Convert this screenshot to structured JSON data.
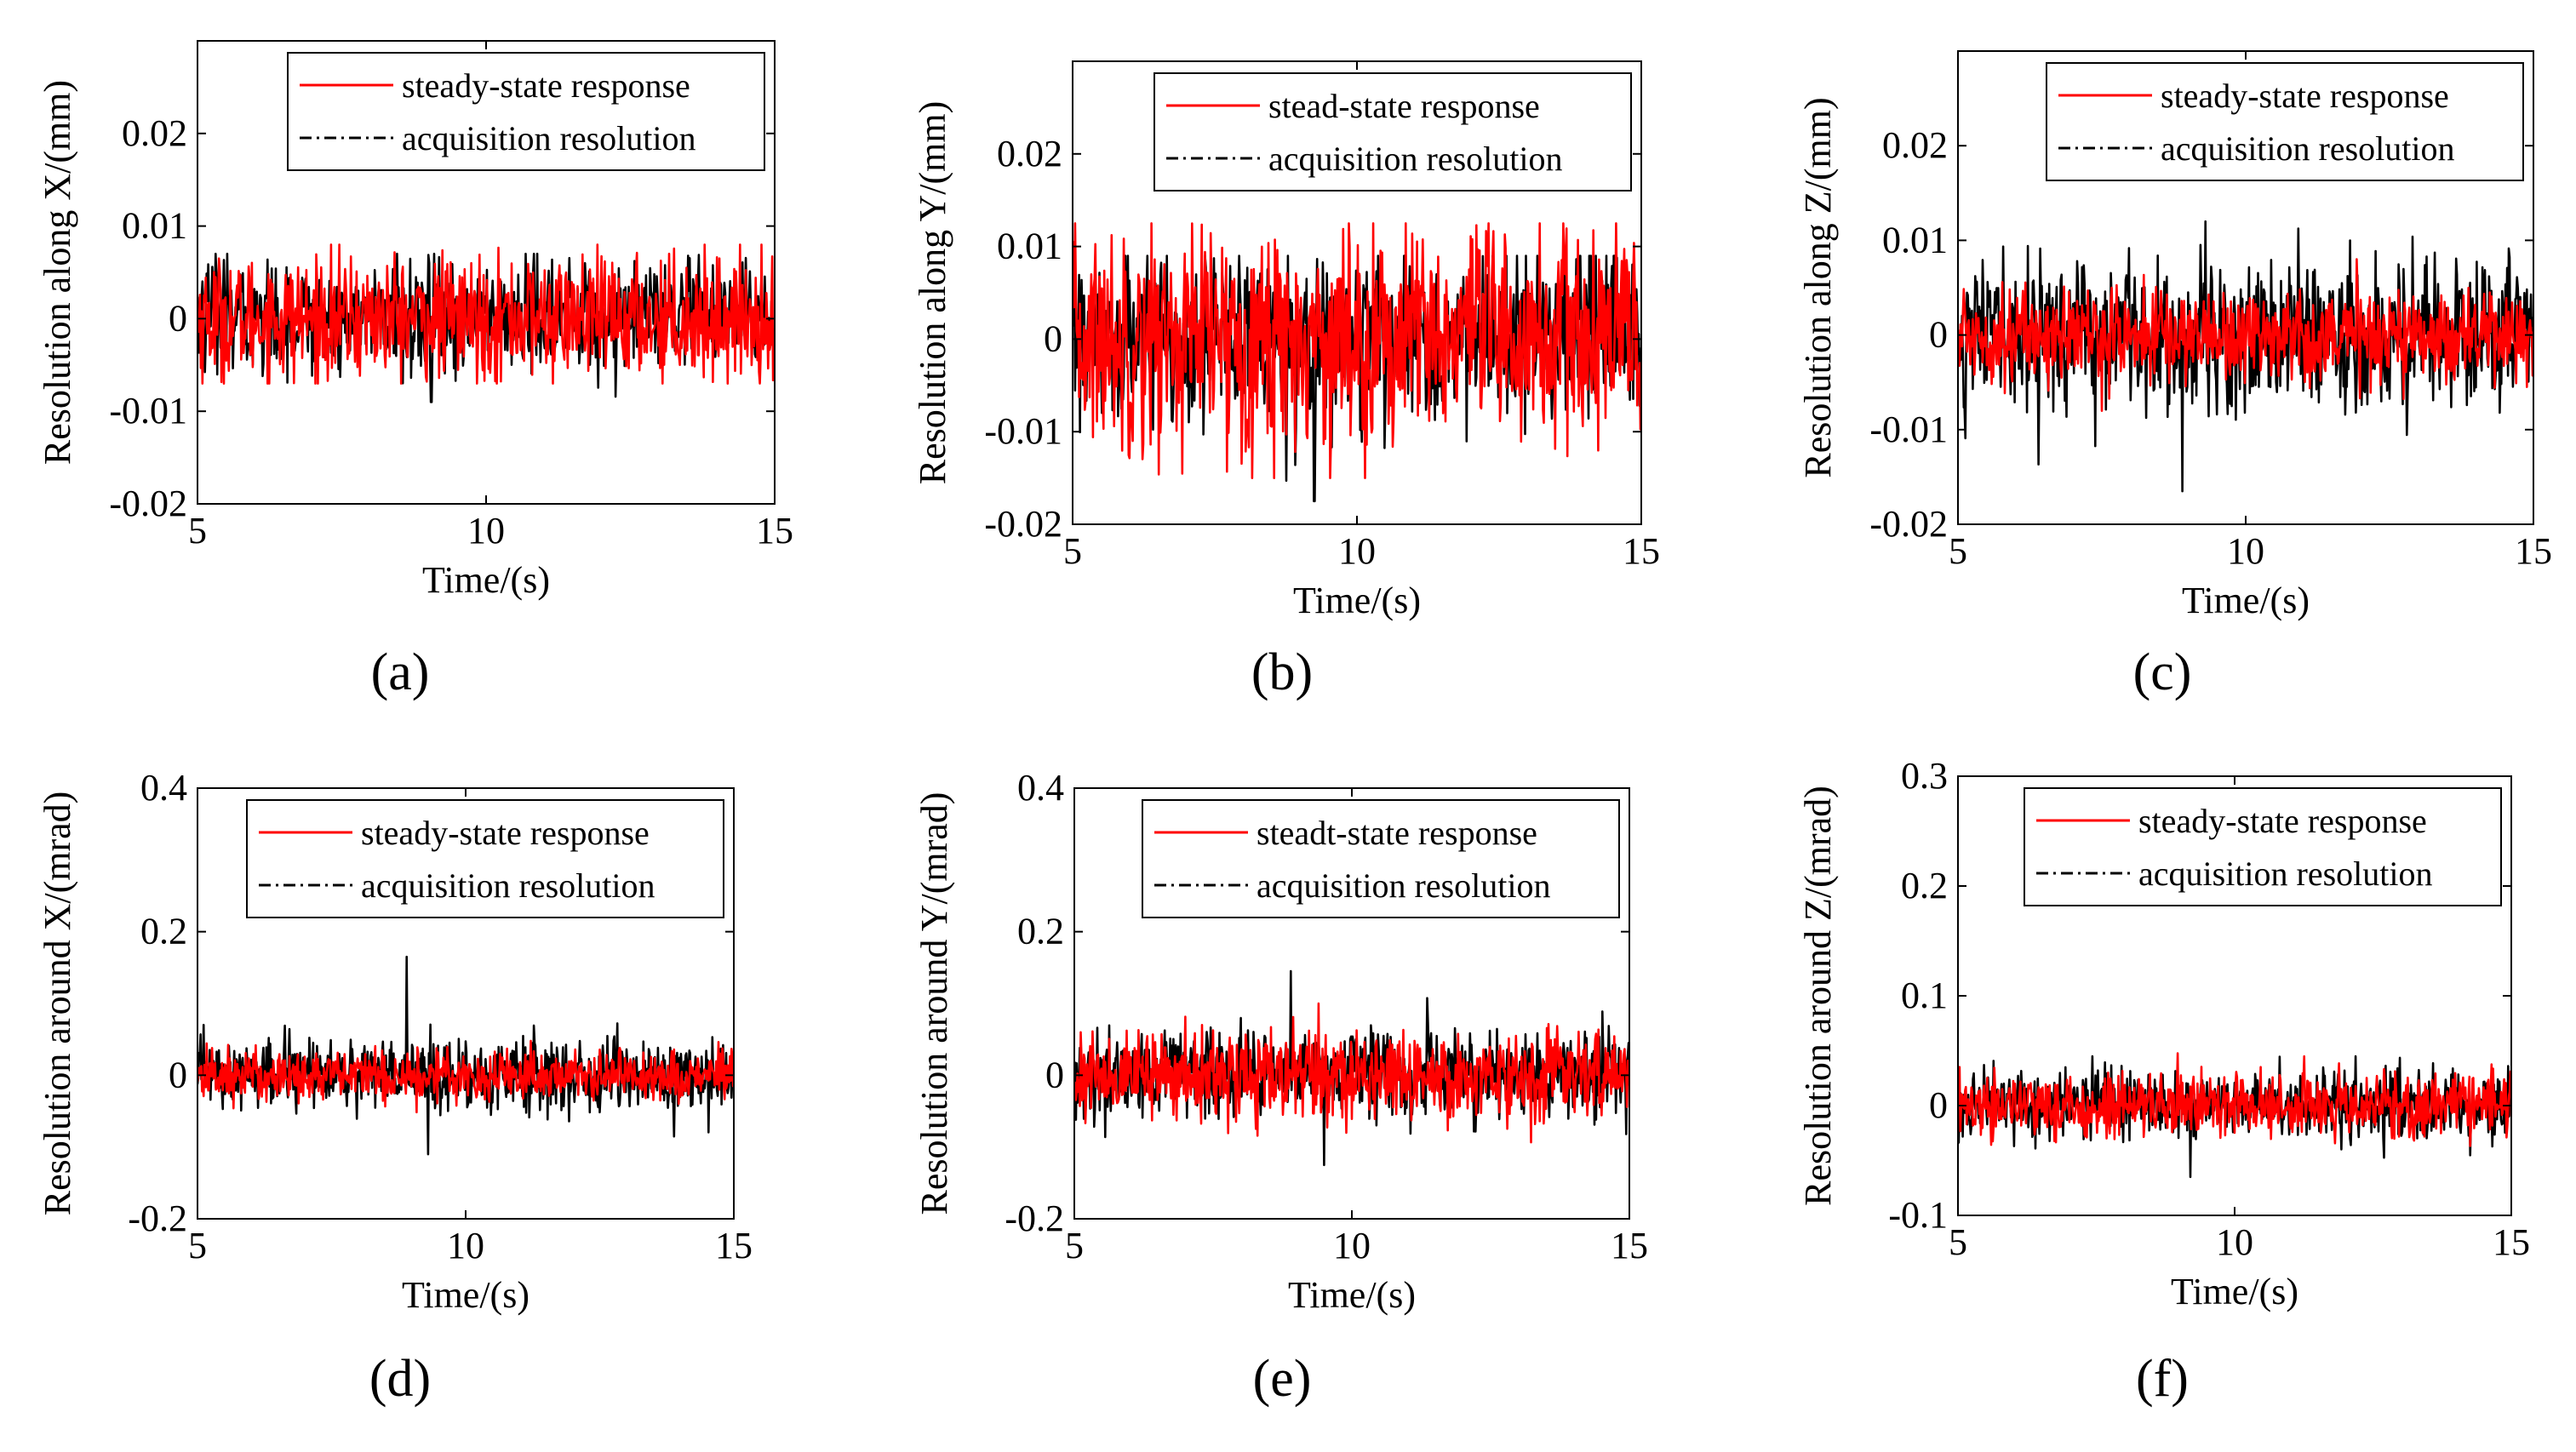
{
  "chart_data": [
    {
      "panel": "(a)",
      "type": "line",
      "ylabel": "Resolution along X/(mm)",
      "xlabel": "Time/(s)",
      "xlim": [
        5,
        15
      ],
      "ylim": [
        -0.02,
        0.03
      ],
      "xticks": [
        5,
        10,
        15
      ],
      "yticks": [
        -0.02,
        -0.01,
        0,
        0.01,
        0.02
      ],
      "ytick_labels": [
        "-0.02",
        "-0.01",
        "0",
        "0.01",
        "0.02"
      ],
      "legend_position": "top-right",
      "series": [
        {
          "name": "steady-state response",
          "style": "solid",
          "color": "#ff0000",
          "amplitude": 0.0033,
          "max": 0.008,
          "min": -0.007,
          "events": []
        },
        {
          "name": "acquisition resolution",
          "style": "dash-dot",
          "color": "#000000",
          "amplitude": 0.003,
          "max": 0.007,
          "min": -0.009,
          "events": [
            {
              "t": 9.05,
              "v": -0.009
            }
          ]
        }
      ]
    },
    {
      "panel": "(b)",
      "type": "line",
      "ylabel": "Resolution along Y/(mm)",
      "xlabel": "Time/(s)",
      "xlim": [
        5,
        15
      ],
      "ylim": [
        -0.02,
        0.03
      ],
      "xticks": [
        5,
        10,
        15
      ],
      "yticks": [
        -0.02,
        -0.01,
        0,
        0.01,
        0.02
      ],
      "ytick_labels": [
        "-0.02",
        "-0.01",
        "0",
        "0.01",
        "0.02"
      ],
      "legend_position": "top-right",
      "series": [
        {
          "name": "stead-state response",
          "style": "solid",
          "color": "#ff0000",
          "amplitude": 0.006,
          "max": 0.0125,
          "min": -0.015,
          "events": []
        },
        {
          "name": "acquisition resolution",
          "style": "dash-dot",
          "color": "#000000",
          "amplitude": 0.0045,
          "max": 0.009,
          "min": -0.0175,
          "events": [
            {
              "t": 9.25,
              "v": -0.0175
            }
          ]
        }
      ]
    },
    {
      "panel": "(c)",
      "type": "line",
      "ylabel": "Resolution along Z/(mm)",
      "xlabel": "Time/(s)",
      "xlim": [
        5,
        15
      ],
      "ylim": [
        -0.02,
        0.03
      ],
      "xticks": [
        5,
        10,
        15
      ],
      "yticks": [
        -0.02,
        -0.01,
        0,
        0.01,
        0.02
      ],
      "ytick_labels": [
        "-0.02",
        "-0.01",
        "0",
        "0.01",
        "0.02"
      ],
      "legend_position": "top-right",
      "series": [
        {
          "name": "steady-state response",
          "style": "solid",
          "color": "#ff0000",
          "amplitude": 0.0025,
          "max": 0.008,
          "min": -0.008,
          "events": []
        },
        {
          "name": "acquisition resolution",
          "style": "dash-dot",
          "color": "#000000",
          "amplitude": 0.004,
          "max": 0.012,
          "min": -0.0165,
          "events": [
            {
              "t": 9.3,
              "v": 0.012
            },
            {
              "t": 8.9,
              "v": -0.0165
            }
          ]
        }
      ]
    },
    {
      "panel": "(d)",
      "type": "line",
      "ylabel": "Resolution around X/(mrad)",
      "xlabel": "Time/(s)",
      "xlim": [
        5,
        15
      ],
      "ylim": [
        -0.2,
        0.4
      ],
      "xticks": [
        5,
        10,
        15
      ],
      "yticks": [
        -0.2,
        0,
        0.2,
        0.4
      ],
      "ytick_labels": [
        "-0.2",
        "0",
        "0.2",
        "0.4"
      ],
      "legend_position": "top-right",
      "series": [
        {
          "name": "steady-state response",
          "style": "solid",
          "color": "#ff0000",
          "amplitude": 0.018,
          "max": 0.05,
          "min": -0.06,
          "events": []
        },
        {
          "name": "acquisition resolution",
          "style": "dash-dot",
          "color": "#000000",
          "amplitude": 0.025,
          "max": 0.165,
          "min": -0.11,
          "events": [
            {
              "t": 8.9,
              "v": 0.165
            },
            {
              "t": 9.3,
              "v": -0.11
            }
          ]
        }
      ]
    },
    {
      "panel": "(e)",
      "type": "line",
      "ylabel": "Resolution around Y/(mrad)",
      "xlabel": "Time/(s)",
      "xlim": [
        5,
        15
      ],
      "ylim": [
        -0.2,
        0.4
      ],
      "xticks": [
        5,
        10,
        15
      ],
      "yticks": [
        -0.2,
        0,
        0.2,
        0.4
      ],
      "ytick_labels": [
        "-0.2",
        "0",
        "0.2",
        "0.4"
      ],
      "legend_position": "top-right",
      "series": [
        {
          "name": "steadt-state response",
          "style": "solid",
          "color": "#ff0000",
          "amplitude": 0.03,
          "max": 0.1,
          "min": -0.1,
          "events": []
        },
        {
          "name": "acquisition resolution",
          "style": "dash-dot",
          "color": "#000000",
          "amplitude": 0.03,
          "max": 0.145,
          "min": -0.125,
          "events": [
            {
              "t": 8.9,
              "v": 0.145
            },
            {
              "t": 9.5,
              "v": -0.125
            }
          ]
        }
      ]
    },
    {
      "panel": "(f)",
      "type": "line",
      "ylabel": "Resolution around Z/(mrad)",
      "xlabel": "Time/(s)",
      "xlim": [
        5,
        15
      ],
      "ylim": [
        -0.1,
        0.3
      ],
      "xticks": [
        5,
        10,
        15
      ],
      "yticks": [
        -0.1,
        0,
        0.1,
        0.2,
        0.3
      ],
      "ytick_labels": [
        "-0.1",
        "0",
        "0.1",
        "0.2",
        "0.3"
      ],
      "legend_position": "top-right",
      "series": [
        {
          "name": "steady-state response",
          "style": "solid",
          "color": "#ff0000",
          "amplitude": 0.015,
          "max": 0.06,
          "min": -0.05,
          "events": []
        },
        {
          "name": "acquisition resolution",
          "style": "dash-dot",
          "color": "#000000",
          "amplitude": 0.015,
          "max": 0.045,
          "min": -0.065,
          "events": [
            {
              "t": 9.2,
              "v": -0.065
            }
          ]
        }
      ]
    }
  ]
}
